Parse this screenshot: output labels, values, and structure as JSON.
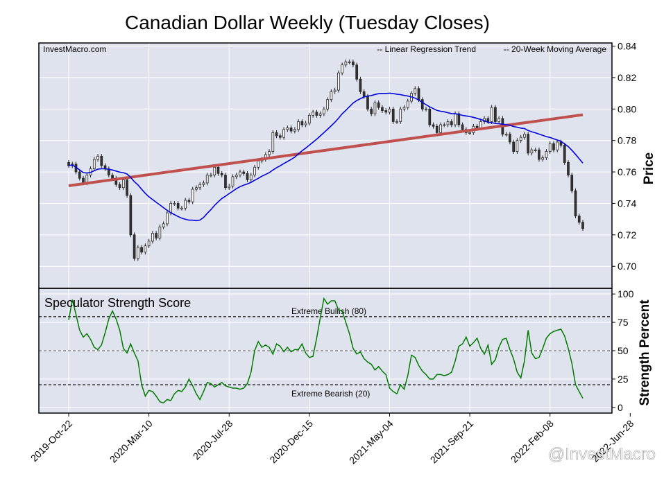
{
  "title": "Canadian Dollar Weekly (Tuesday Closes)",
  "source_label": "InvestMacro.com",
  "watermark": "@InvestMacro",
  "colors": {
    "panel_bg": "#dfe3ee",
    "regression": "#c0504d",
    "moving_average": "#0000dd",
    "strength": "#007a00",
    "candle_up": "#ffffff",
    "candle_down": "#333333"
  },
  "chart_data": [
    {
      "type": "candlestick",
      "title": "Canadian Dollar Weekly (Tuesday Closes)",
      "ylabel": "Price",
      "ylim": [
        0.686,
        0.842
      ],
      "yticks": [
        "0.70",
        "0.72",
        "0.74",
        "0.76",
        "0.78",
        "0.80",
        "0.82",
        "0.84"
      ],
      "xticks": [
        "2019-Oct-22",
        "2020-Mar-10",
        "2020-Jul-28",
        "2020-Dec-15",
        "2021-May-04",
        "2021-Sep-21",
        "2022-Feb-08",
        "2022-Jun-28"
      ],
      "legend": [
        "-- Linear Regression Trend",
        "-- 20-Week Moving Average"
      ],
      "legend_position": "top-right",
      "grid": true,
      "closes": [
        0.764,
        0.765,
        0.76,
        0.756,
        0.753,
        0.758,
        0.762,
        0.768,
        0.77,
        0.764,
        0.762,
        0.758,
        0.756,
        0.752,
        0.75,
        0.755,
        0.745,
        0.72,
        0.705,
        0.712,
        0.709,
        0.713,
        0.716,
        0.721,
        0.718,
        0.725,
        0.727,
        0.734,
        0.74,
        0.74,
        0.737,
        0.737,
        0.742,
        0.741,
        0.749,
        0.75,
        0.752,
        0.753,
        0.758,
        0.758,
        0.763,
        0.759,
        0.758,
        0.75,
        0.751,
        0.757,
        0.758,
        0.76,
        0.759,
        0.755,
        0.758,
        0.763,
        0.767,
        0.768,
        0.771,
        0.773,
        0.785,
        0.783,
        0.782,
        0.787,
        0.788,
        0.786,
        0.787,
        0.792,
        0.79,
        0.791,
        0.796,
        0.798,
        0.796,
        0.797,
        0.8,
        0.806,
        0.811,
        0.812,
        0.823,
        0.828,
        0.83,
        0.83,
        0.828,
        0.819,
        0.811,
        0.808,
        0.8,
        0.797,
        0.804,
        0.801,
        0.799,
        0.798,
        0.8,
        0.792,
        0.792,
        0.8,
        0.801,
        0.805,
        0.81,
        0.813,
        0.806,
        0.8,
        0.8,
        0.79,
        0.789,
        0.785,
        0.79,
        0.79,
        0.792,
        0.79,
        0.797,
        0.79,
        0.787,
        0.785,
        0.785,
        0.789,
        0.788,
        0.792,
        0.794,
        0.792,
        0.801,
        0.792,
        0.794,
        0.784,
        0.784,
        0.779,
        0.773,
        0.78,
        0.782,
        0.784,
        0.772,
        0.774,
        0.774,
        0.768,
        0.769,
        0.773,
        0.778,
        0.774,
        0.779,
        0.777,
        0.766,
        0.758,
        0.748,
        0.732,
        0.728,
        0.724
      ]
    },
    {
      "type": "line",
      "title": "Speculator Strength Score",
      "ylabel": "Strength Percent",
      "ylim": [
        -5,
        105
      ],
      "yticks": [
        "0",
        "25",
        "50",
        "75",
        "100"
      ],
      "annotations": [
        "Extreme Bullish (80)",
        "Extreme Bearish (20)"
      ],
      "strength": [
        77,
        95,
        82,
        68,
        62,
        65,
        60,
        53,
        51,
        55,
        66,
        78,
        85,
        78,
        68,
        52,
        48,
        56,
        48,
        41,
        20,
        10,
        15,
        14,
        10,
        5,
        4,
        7,
        6,
        12,
        15,
        14,
        18,
        25,
        19,
        12,
        7,
        14,
        22,
        21,
        18,
        20,
        22,
        19,
        18,
        17,
        17,
        16,
        17,
        21,
        31,
        50,
        58,
        53,
        55,
        53,
        47,
        56,
        54,
        49,
        53,
        49,
        51,
        51,
        56,
        48,
        44,
        45,
        61,
        79,
        96,
        91,
        94,
        94,
        86,
        85,
        75,
        65,
        52,
        47,
        49,
        43,
        40,
        38,
        33,
        36,
        32,
        29,
        17,
        14,
        12,
        20,
        16,
        28,
        46,
        44,
        37,
        32,
        29,
        25,
        25,
        29,
        29,
        28,
        29,
        31,
        41,
        54,
        56,
        62,
        54,
        57,
        61,
        52,
        47,
        55,
        38,
        42,
        53,
        60,
        61,
        51,
        43,
        31,
        26,
        41,
        68,
        48,
        43,
        44,
        52,
        61,
        65,
        67,
        68,
        69,
        63,
        52,
        39,
        20,
        14,
        8
      ]
    }
  ]
}
